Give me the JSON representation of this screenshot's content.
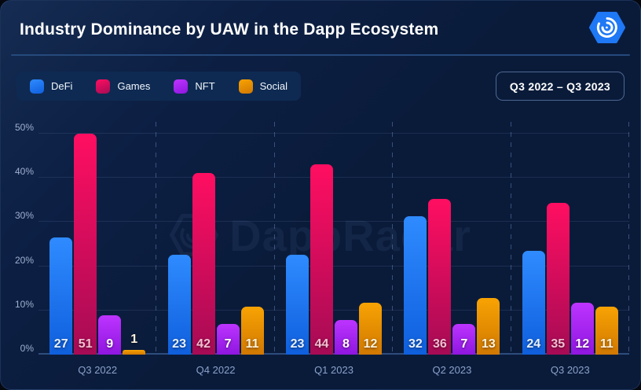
{
  "header": {
    "title": "Industry Dominance by UAW in the Dapp Ecosystem"
  },
  "toolbar": {
    "range_label": "Q3 2022 – Q3 2023"
  },
  "legend": {
    "items": [
      {
        "label": "DeFi",
        "color_top": "#2f8bff",
        "color_bottom": "#0f5fdd"
      },
      {
        "label": "Games",
        "color_top": "#ff0e61",
        "color_bottom": "#a60b55"
      },
      {
        "label": "NFT",
        "color_top": "#bd34ff",
        "color_bottom": "#8f16e0"
      },
      {
        "label": "Social",
        "color_top": "#f8a303",
        "color_bottom": "#d17802"
      }
    ]
  },
  "watermark": {
    "text": "DappRadar"
  },
  "chart_data": {
    "type": "bar",
    "title": "Industry Dominance by UAW in the Dapp Ecosystem",
    "categories": [
      "Q3 2022",
      "Q4 2022",
      "Q1 2023",
      "Q2 2023",
      "Q3 2023"
    ],
    "series": [
      {
        "name": "DeFi",
        "values": [
          27,
          23,
          23,
          32,
          24
        ],
        "color_top": "#2f8bff",
        "color_bottom": "#0f5fdd",
        "label_color": "#e8f1ff"
      },
      {
        "name": "Games",
        "values": [
          51,
          42,
          44,
          36,
          35
        ],
        "color_top": "#ff0e61",
        "color_bottom": "#a60b55",
        "label_color": "#f3bfd0"
      },
      {
        "name": "NFT",
        "values": [
          9,
          7,
          8,
          7,
          12
        ],
        "color_top": "#bd34ff",
        "color_bottom": "#8f16e0",
        "label_color": "#ffffff"
      },
      {
        "name": "Social",
        "values": [
          1,
          11,
          12,
          13,
          11
        ],
        "color_top": "#f8a303",
        "color_bottom": "#d17802",
        "label_color": "#fff3dd"
      }
    ],
    "xlabel": "",
    "ylabel": "",
    "unit": "%",
    "ylim": [
      0,
      50
    ],
    "y_ticks": [
      "0%",
      "10%",
      "20%",
      "30%",
      "40%",
      "50%"
    ],
    "grid": "horizontal solid + vertical dashed group separators",
    "legend_position": "top-left"
  }
}
